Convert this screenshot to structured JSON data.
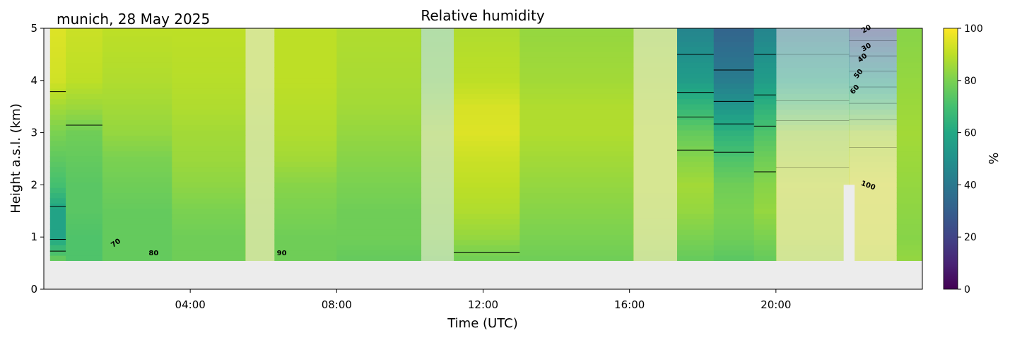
{
  "chart_data": {
    "type": "heatmap",
    "title": "Relative humidity",
    "subtitle": "munich, 28 May 2025",
    "xlabel": "Time (UTC)",
    "ylabel": "Height a.s.l. (km)",
    "colorbar_label": "%",
    "colormap": "viridis",
    "xlim_hours": [
      0,
      24
    ],
    "ylim_km": [
      0,
      5
    ],
    "clim": [
      0,
      100
    ],
    "x_ticks": [
      "04:00",
      "08:00",
      "12:00",
      "16:00",
      "20:00"
    ],
    "x_tick_hours": [
      4,
      8,
      12,
      16,
      20
    ],
    "y_ticks": [
      "0",
      "1",
      "2",
      "3",
      "4",
      "5"
    ],
    "y_tick_values": [
      0,
      1,
      2,
      3,
      4,
      5
    ],
    "colorbar_ticks": [
      "0",
      "20",
      "40",
      "60",
      "80",
      "100"
    ],
    "colorbar_tick_values": [
      0,
      20,
      40,
      60,
      80,
      100
    ],
    "data_bottom_km": 0.55,
    "no_data_color": "#ececec",
    "columns": [
      {
        "t0": 0.17,
        "t1": 0.6,
        "faded": false,
        "profile": [
          [
            0.55,
            78
          ],
          [
            1.0,
            58
          ],
          [
            1.5,
            58
          ],
          [
            2.0,
            70
          ],
          [
            2.5,
            75
          ],
          [
            3.0,
            80
          ],
          [
            3.5,
            86
          ],
          [
            4.0,
            93
          ],
          [
            5.0,
            95
          ]
        ]
      },
      {
        "t0": 0.6,
        "t1": 1.6,
        "faded": false,
        "profile": [
          [
            0.55,
            72
          ],
          [
            1.0,
            72
          ],
          [
            1.5,
            74
          ],
          [
            2.0,
            74
          ],
          [
            2.5,
            76
          ],
          [
            3.0,
            78
          ],
          [
            3.5,
            85
          ],
          [
            4.0,
            90
          ],
          [
            5.0,
            92
          ]
        ]
      },
      {
        "t0": 1.6,
        "t1": 3.5,
        "faded": false,
        "profile": [
          [
            0.55,
            76
          ],
          [
            1.0,
            76
          ],
          [
            1.5,
            76
          ],
          [
            2.0,
            78
          ],
          [
            2.5,
            80
          ],
          [
            3.0,
            84
          ],
          [
            3.5,
            86
          ],
          [
            4.0,
            88
          ],
          [
            5.0,
            90
          ]
        ]
      },
      {
        "t0": 3.5,
        "t1": 5.5,
        "faded": false,
        "profile": [
          [
            0.55,
            78
          ],
          [
            1.0,
            78
          ],
          [
            1.5,
            80
          ],
          [
            2.0,
            83
          ],
          [
            2.5,
            85
          ],
          [
            3.0,
            86
          ],
          [
            3.5,
            88
          ],
          [
            4.0,
            89
          ],
          [
            5.0,
            90
          ]
        ]
      },
      {
        "t0": 5.5,
        "t1": 6.3,
        "faded": true,
        "profile": [
          [
            0.55,
            86
          ],
          [
            1.0,
            86
          ],
          [
            2.0,
            87
          ],
          [
            3.0,
            88
          ],
          [
            4.0,
            90
          ],
          [
            5.0,
            90
          ]
        ]
      },
      {
        "t0": 6.3,
        "t1": 8.0,
        "faded": false,
        "profile": [
          [
            0.55,
            78
          ],
          [
            1.0,
            78
          ],
          [
            1.5,
            80
          ],
          [
            2.0,
            82
          ],
          [
            2.5,
            86
          ],
          [
            3.0,
            88
          ],
          [
            3.5,
            89
          ],
          [
            4.0,
            90
          ],
          [
            5.0,
            90
          ]
        ]
      },
      {
        "t0": 8.0,
        "t1": 10.3,
        "faded": false,
        "profile": [
          [
            0.55,
            76
          ],
          [
            1.0,
            78
          ],
          [
            1.5,
            78
          ],
          [
            2.0,
            80
          ],
          [
            2.5,
            82
          ],
          [
            3.0,
            84
          ],
          [
            3.5,
            86
          ],
          [
            4.0,
            87
          ],
          [
            5.0,
            88
          ]
        ]
      },
      {
        "t0": 10.3,
        "t1": 11.2,
        "faded": true,
        "profile": [
          [
            0.55,
            80
          ],
          [
            1.0,
            82
          ],
          [
            2.0,
            84
          ],
          [
            3.0,
            86
          ],
          [
            4.0,
            80
          ],
          [
            5.0,
            78
          ]
        ]
      },
      {
        "t0": 11.2,
        "t1": 13.0,
        "faded": false,
        "profile": [
          [
            0.55,
            78
          ],
          [
            1.0,
            84
          ],
          [
            1.5,
            88
          ],
          [
            2.0,
            90
          ],
          [
            2.5,
            92
          ],
          [
            3.0,
            95
          ],
          [
            3.5,
            94
          ],
          [
            4.0,
            90
          ],
          [
            5.0,
            88
          ]
        ]
      },
      {
        "t0": 13.0,
        "t1": 16.1,
        "faded": false,
        "profile": [
          [
            0.55,
            78
          ],
          [
            1.0,
            80
          ],
          [
            1.5,
            82
          ],
          [
            2.0,
            84
          ],
          [
            2.5,
            86
          ],
          [
            3.0,
            88
          ],
          [
            3.5,
            88
          ],
          [
            4.0,
            86
          ],
          [
            5.0,
            84
          ]
        ]
      },
      {
        "t0": 16.1,
        "t1": 17.3,
        "faded": true,
        "profile": [
          [
            0.55,
            86
          ],
          [
            1.0,
            88
          ],
          [
            2.0,
            90
          ],
          [
            3.0,
            90
          ],
          [
            4.0,
            88
          ],
          [
            5.0,
            86
          ]
        ]
      },
      {
        "t0": 17.3,
        "t1": 18.3,
        "faded": false,
        "profile": [
          [
            0.55,
            76
          ],
          [
            1.0,
            80
          ],
          [
            1.5,
            84
          ],
          [
            2.0,
            86
          ],
          [
            2.5,
            82
          ],
          [
            3.0,
            76
          ],
          [
            3.5,
            66
          ],
          [
            4.0,
            55
          ],
          [
            5.0,
            45
          ]
        ]
      },
      {
        "t0": 18.3,
        "t1": 19.4,
        "faded": false,
        "profile": [
          [
            0.55,
            74
          ],
          [
            1.0,
            78
          ],
          [
            1.5,
            80
          ],
          [
            2.0,
            78
          ],
          [
            2.5,
            72
          ],
          [
            3.0,
            64
          ],
          [
            3.5,
            52
          ],
          [
            4.0,
            42
          ],
          [
            5.0,
            32
          ]
        ]
      },
      {
        "t0": 19.4,
        "t1": 20.0,
        "faded": false,
        "profile": [
          [
            0.55,
            76
          ],
          [
            1.0,
            80
          ],
          [
            1.5,
            84
          ],
          [
            2.0,
            82
          ],
          [
            2.5,
            78
          ],
          [
            3.0,
            72
          ],
          [
            3.5,
            64
          ],
          [
            4.0,
            55
          ],
          [
            5.0,
            45
          ]
        ]
      },
      {
        "t0": 20.0,
        "t1": 22.0,
        "faded": true,
        "profile": [
          [
            0.55,
            88
          ],
          [
            1.0,
            90
          ],
          [
            2.0,
            92
          ],
          [
            3.0,
            86
          ],
          [
            4.0,
            60
          ],
          [
            5.0,
            40
          ]
        ]
      },
      {
        "t0": 22.0,
        "t1": 23.3,
        "faded": true,
        "profile": [
          [
            0.55,
            92
          ],
          [
            1.0,
            94
          ],
          [
            2.0,
            95
          ],
          [
            3.0,
            88
          ],
          [
            4.0,
            56
          ],
          [
            5.0,
            22
          ]
        ]
      },
      {
        "t0": 23.3,
        "t1": 24.0,
        "faded": false,
        "profile": [
          [
            0.55,
            84
          ],
          [
            1.0,
            82
          ],
          [
            2.0,
            84
          ],
          [
            3.0,
            86
          ],
          [
            4.0,
            84
          ],
          [
            5.0,
            82
          ]
        ]
      }
    ],
    "gaps": [
      {
        "t0": 21.85,
        "t1": 22.15,
        "h1": 2.0
      }
    ],
    "contour_levels": [
      20,
      30,
      40,
      50,
      60,
      70,
      80,
      90,
      100
    ],
    "contour_labels": [
      {
        "text": "70",
        "t": 2.0,
        "h": 0.85,
        "angle": -35
      },
      {
        "text": "80",
        "t": 3.0,
        "h": 0.65,
        "angle": 0
      },
      {
        "text": "90",
        "t": 6.5,
        "h": 0.65,
        "angle": 0
      },
      {
        "text": "100",
        "t": 22.5,
        "h": 1.95,
        "angle": 20
      },
      {
        "text": "60",
        "t": 22.2,
        "h": 3.8,
        "angle": -50
      },
      {
        "text": "50",
        "t": 22.3,
        "h": 4.1,
        "angle": -50
      },
      {
        "text": "40",
        "t": 22.4,
        "h": 4.4,
        "angle": -40
      },
      {
        "text": "30",
        "t": 22.5,
        "h": 4.6,
        "angle": -30
      },
      {
        "text": "20",
        "t": 22.5,
        "h": 4.95,
        "angle": -30
      }
    ]
  }
}
